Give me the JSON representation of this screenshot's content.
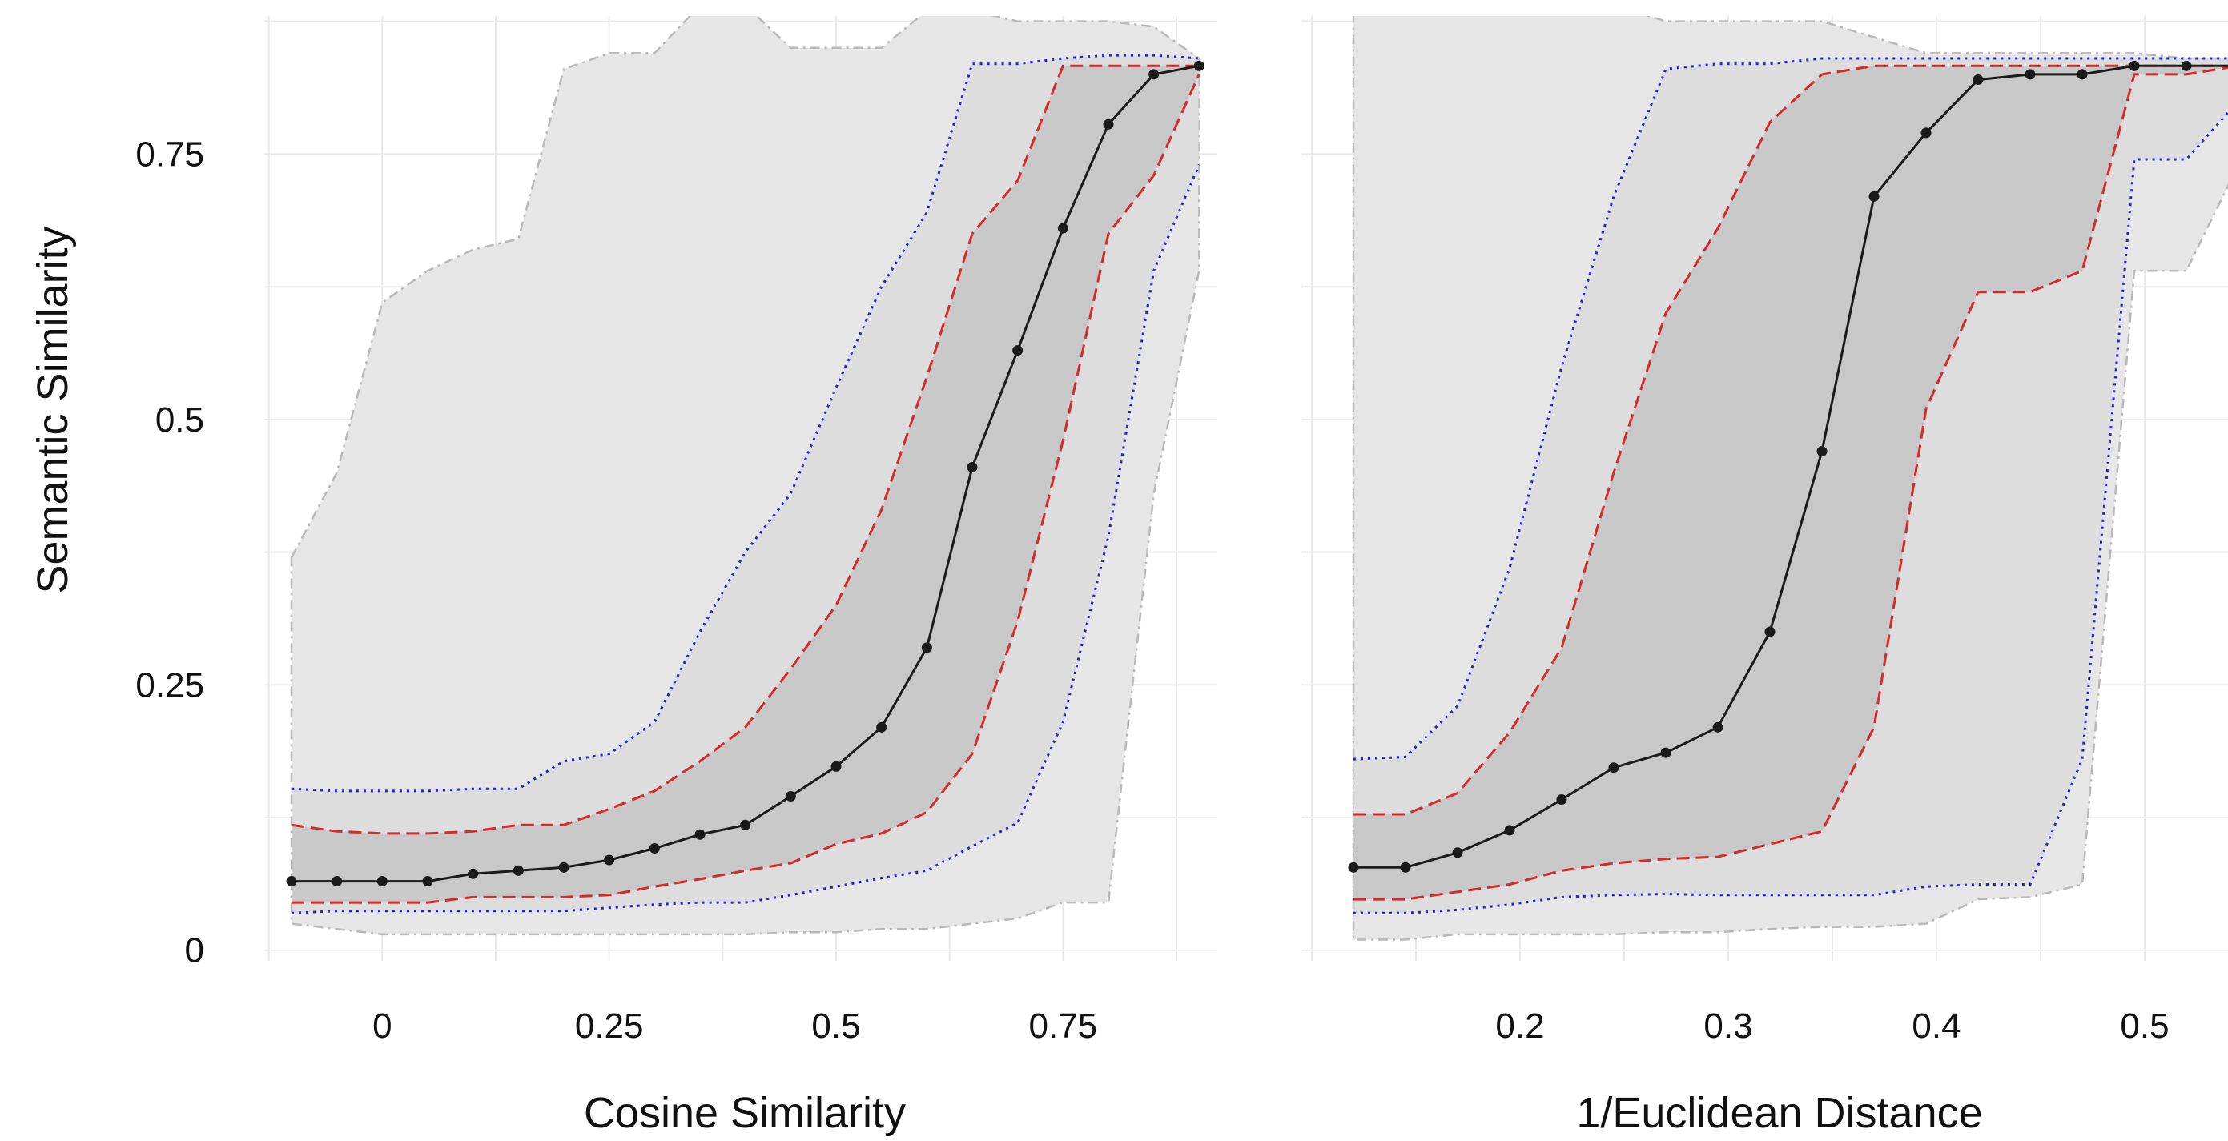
{
  "figure": {
    "ylabel": "Semantic Similarity",
    "colors": {
      "panel_bg": "#ffffff",
      "grid": "#e9e9e9",
      "band_outer_fill": "#e6e6e6",
      "band_outer_line": "#b8b8b8",
      "band_inner_fill": "#c8c8c8",
      "band_mid_fill": "#d6d6d6",
      "blue": "#1f1fe6",
      "red": "#d42a2a",
      "median": "#1a1a1a"
    }
  },
  "chart_data": [
    {
      "type": "line",
      "xlabel": "Cosine Similarity",
      "ylabel": "Semantic Similarity",
      "xlim": [
        -0.13,
        0.92
      ],
      "ylim": [
        -0.01,
        0.88
      ],
      "x_ticks": [
        0,
        0.25,
        0.5,
        0.75
      ],
      "x_tick_labels": [
        "0",
        "0.25",
        "0.5",
        "0.75"
      ],
      "y_ticks": [
        0,
        0.25,
        0.5,
        0.75
      ],
      "y_tick_labels": [
        "0",
        "0.25",
        "0.5",
        "0.75"
      ],
      "x": [
        -0.1,
        -0.05,
        0.0,
        0.05,
        0.1,
        0.15,
        0.2,
        0.25,
        0.3,
        0.35,
        0.4,
        0.45,
        0.5,
        0.55,
        0.6,
        0.65,
        0.7,
        0.75,
        0.8,
        0.85,
        0.9
      ],
      "series": [
        {
          "role": "median",
          "values": [
            0.065,
            0.065,
            0.065,
            0.065,
            0.072,
            0.075,
            0.078,
            0.085,
            0.096,
            0.109,
            0.118,
            0.145,
            0.173,
            0.21,
            0.285,
            0.455,
            0.565,
            0.68,
            0.778,
            0.825,
            0.833
          ]
        },
        {
          "role": "outer_upper",
          "values": [
            0.37,
            0.45,
            0.61,
            0.64,
            0.66,
            0.67,
            0.83,
            0.845,
            0.845,
            0.89,
            0.89,
            0.85,
            0.85,
            0.85,
            0.885,
            0.885,
            0.875,
            0.875,
            0.875,
            0.87,
            0.84
          ]
        },
        {
          "role": "outer_lower",
          "values": [
            0.025,
            0.02,
            0.015,
            0.015,
            0.015,
            0.015,
            0.015,
            0.015,
            0.015,
            0.015,
            0.015,
            0.017,
            0.017,
            0.02,
            0.02,
            0.025,
            0.03,
            0.045,
            0.045,
            0.43,
            0.64
          ]
        },
        {
          "role": "blue_upper",
          "values": [
            0.152,
            0.15,
            0.15,
            0.15,
            0.152,
            0.152,
            0.178,
            0.185,
            0.215,
            0.3,
            0.375,
            0.43,
            0.53,
            0.625,
            0.695,
            0.835,
            0.835,
            0.84,
            0.843,
            0.843,
            0.84
          ]
        },
        {
          "role": "blue_lower",
          "values": [
            0.035,
            0.037,
            0.037,
            0.037,
            0.037,
            0.037,
            0.037,
            0.04,
            0.043,
            0.045,
            0.045,
            0.052,
            0.06,
            0.068,
            0.075,
            0.098,
            0.12,
            0.215,
            0.39,
            0.64,
            0.74
          ]
        },
        {
          "role": "red_upper",
          "values": [
            0.118,
            0.112,
            0.11,
            0.11,
            0.112,
            0.118,
            0.118,
            0.133,
            0.15,
            0.178,
            0.21,
            0.265,
            0.325,
            0.415,
            0.54,
            0.675,
            0.725,
            0.833,
            0.833,
            0.833,
            0.833
          ]
        },
        {
          "role": "red_lower",
          "values": [
            0.045,
            0.045,
            0.045,
            0.045,
            0.05,
            0.05,
            0.05,
            0.052,
            0.06,
            0.067,
            0.075,
            0.082,
            0.1,
            0.11,
            0.13,
            0.185,
            0.31,
            0.48,
            0.675,
            0.73,
            0.825
          ]
        }
      ]
    },
    {
      "type": "line",
      "xlabel": "1/Euclidean Distance",
      "ylabel": "Semantic Similarity",
      "xlim": [
        0.095,
        0.54
      ],
      "ylim": [
        -0.01,
        0.88
      ],
      "x_ticks": [
        0.2,
        0.3,
        0.4,
        0.5
      ],
      "x_tick_labels": [
        "0.2",
        "0.3",
        "0.4",
        "0.5"
      ],
      "x": [
        0.12,
        0.145,
        0.17,
        0.195,
        0.22,
        0.245,
        0.27,
        0.295,
        0.32,
        0.345,
        0.37,
        0.395,
        0.42,
        0.445,
        0.47,
        0.495,
        0.52,
        0.545
      ],
      "series": [
        {
          "role": "median",
          "values": [
            0.078,
            0.078,
            0.092,
            0.113,
            0.142,
            0.172,
            0.186,
            0.21,
            0.3,
            0.47,
            0.71,
            0.77,
            0.82,
            0.825,
            0.825,
            0.833,
            0.833,
            0.833
          ]
        },
        {
          "role": "outer_upper",
          "values": [
            0.89,
            0.89,
            0.89,
            0.89,
            0.89,
            0.89,
            0.875,
            0.875,
            0.875,
            0.875,
            0.86,
            0.845,
            0.845,
            0.845,
            0.845,
            0.845,
            0.84,
            0.84
          ]
        },
        {
          "role": "outer_lower",
          "values": [
            0.01,
            0.01,
            0.015,
            0.015,
            0.015,
            0.015,
            0.017,
            0.017,
            0.02,
            0.022,
            0.022,
            0.025,
            0.048,
            0.05,
            0.062,
            0.64,
            0.64,
            0.74
          ]
        },
        {
          "role": "blue_upper",
          "values": [
            0.18,
            0.182,
            0.23,
            0.36,
            0.55,
            0.71,
            0.83,
            0.835,
            0.835,
            0.84,
            0.84,
            0.84,
            0.84,
            0.84,
            0.84,
            0.84,
            0.84,
            0.84
          ]
        },
        {
          "role": "blue_lower",
          "values": [
            0.035,
            0.035,
            0.038,
            0.043,
            0.05,
            0.052,
            0.053,
            0.052,
            0.052,
            0.052,
            0.052,
            0.06,
            0.062,
            0.062,
            0.18,
            0.745,
            0.745,
            0.8
          ]
        },
        {
          "role": "red_upper",
          "values": [
            0.128,
            0.128,
            0.148,
            0.205,
            0.285,
            0.45,
            0.6,
            0.68,
            0.78,
            0.825,
            0.833,
            0.833,
            0.833,
            0.833,
            0.833,
            0.833,
            0.833,
            0.833
          ]
        },
        {
          "role": "red_lower",
          "values": [
            0.048,
            0.048,
            0.055,
            0.062,
            0.075,
            0.082,
            0.086,
            0.088,
            0.1,
            0.112,
            0.21,
            0.51,
            0.62,
            0.62,
            0.64,
            0.825,
            0.825,
            0.833
          ]
        }
      ]
    }
  ]
}
